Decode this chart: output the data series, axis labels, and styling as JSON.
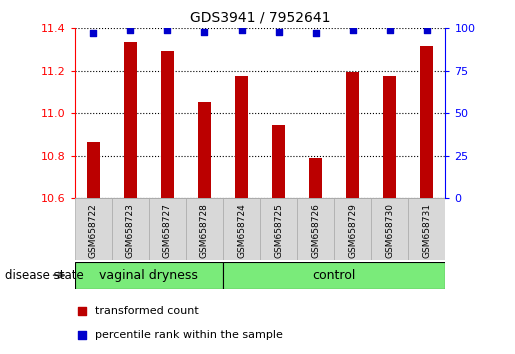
{
  "title": "GDS3941 / 7952641",
  "samples": [
    "GSM658722",
    "GSM658723",
    "GSM658727",
    "GSM658728",
    "GSM658724",
    "GSM658725",
    "GSM658726",
    "GSM658729",
    "GSM658730",
    "GSM658731"
  ],
  "red_values": [
    10.865,
    11.335,
    11.295,
    11.055,
    11.175,
    10.945,
    10.79,
    11.195,
    11.175,
    11.315
  ],
  "blue_values": [
    97,
    99,
    99,
    98,
    99,
    98,
    97,
    99,
    99,
    99
  ],
  "ylim_left": [
    10.6,
    11.4
  ],
  "ylim_right": [
    0,
    100
  ],
  "yticks_left": [
    10.6,
    10.8,
    11.0,
    11.2,
    11.4
  ],
  "yticks_right": [
    0,
    25,
    50,
    75,
    100
  ],
  "groups": [
    {
      "label": "vaginal dryness",
      "start": 0,
      "end": 4,
      "color": "#7aeb7a"
    },
    {
      "label": "control",
      "start": 4,
      "end": 10,
      "color": "#7aeb7a"
    }
  ],
  "group_label": "disease state",
  "bar_color": "#bb0000",
  "dot_color": "#0000cc",
  "bar_width": 0.35,
  "legend_items": [
    {
      "label": "transformed count",
      "color": "#bb0000"
    },
    {
      "label": "percentile rank within the sample",
      "color": "#0000cc"
    }
  ],
  "title_fontsize": 10,
  "tick_fontsize": 8,
  "sample_fontsize": 6.5,
  "group_fontsize": 9,
  "legend_fontsize": 8
}
